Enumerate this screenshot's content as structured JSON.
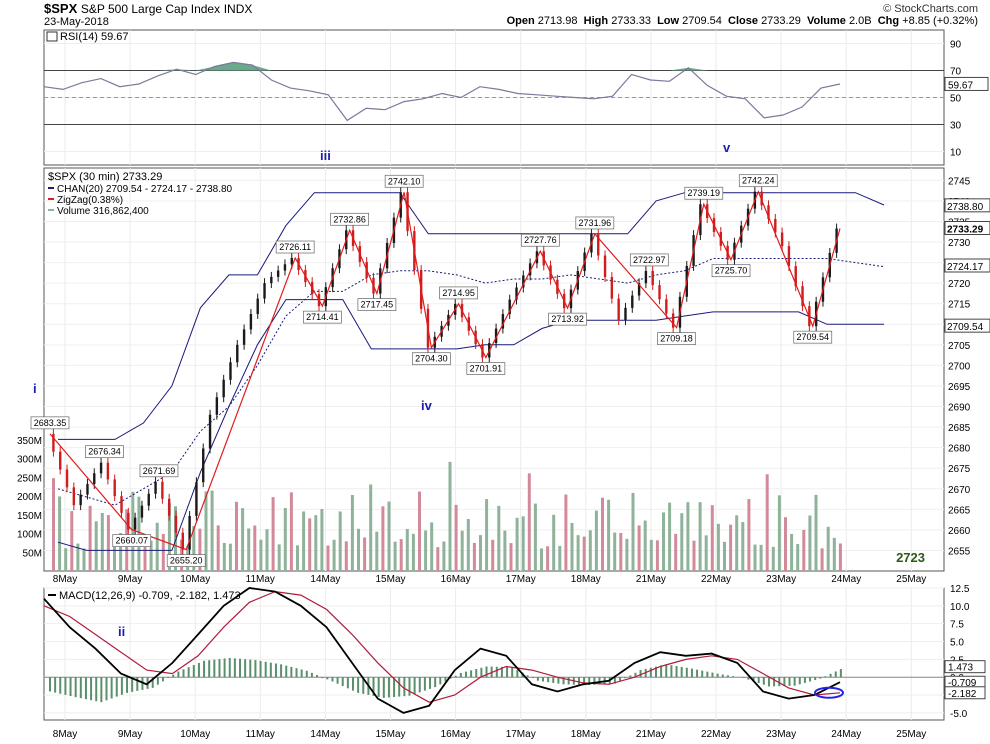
{
  "header": {
    "symbol": "$SPX",
    "name": "S&P 500 Large Cap Index",
    "exchange": "INDX",
    "date": "23-May-2018",
    "copyright": "© StockCharts.com",
    "open_label": "Open",
    "open": "2713.98",
    "high_label": "High",
    "high": "2733.33",
    "low_label": "Low",
    "low": "2709.54",
    "close_label": "Close",
    "close": "2733.29",
    "volume_label": "Volume",
    "volume": "2.0B",
    "chg_label": "Chg",
    "chg": "+8.85 (+0.32%)"
  },
  "colors": {
    "up": "#1a1a1a",
    "down": "#d01c1c",
    "zigzag": "#e21b1b",
    "channel": "#1a1a7a",
    "rsi_fill": "#6aa98a",
    "vol_up": "#8fb29a",
    "vol_down": "#d28a9a",
    "macd_hist": "#5a8f6c",
    "wave_label": "#1c1cb0",
    "ellipse": "#2222ee"
  },
  "chart_data": [
    {
      "type": "line",
      "title": "RSI(14) 59.67",
      "ylim": [
        0,
        100
      ],
      "y_ticks": [
        "90",
        "70",
        "50",
        "30",
        "10"
      ],
      "reference_lines": [
        70,
        50,
        30
      ],
      "right_labels": [
        "59.67"
      ],
      "series": [
        {
          "name": "RSI(14)",
          "values": [
            58,
            56,
            61,
            64,
            58,
            60,
            66,
            71,
            67,
            73,
            76,
            74,
            63,
            57,
            55,
            52,
            33,
            42,
            41,
            47,
            49,
            53,
            50,
            58,
            56,
            53,
            52,
            51,
            50,
            49,
            51,
            67,
            63,
            62,
            72,
            59,
            51,
            49,
            35,
            37,
            43,
            57,
            60
          ]
        }
      ]
    },
    {
      "type": "line",
      "title": "$SPX (30 min) 2733.29",
      "legend": [
        "CHAN(20) 2709.54 - 2724.17 - 2738.80",
        "ZigZag(0.38%)",
        "Volume 316,862,400"
      ],
      "x_labels": [
        "8May",
        "9May",
        "10May",
        "11May",
        "14May",
        "15May",
        "16May",
        "17May",
        "18May",
        "21May",
        "22May",
        "23May",
        "24May",
        "25May"
      ],
      "ylim": [
        2650,
        2748
      ],
      "y_ticks": [
        "2745",
        "2740",
        "2735",
        "2730",
        "2725",
        "2720",
        "2715",
        "2710",
        "2705",
        "2700",
        "2695",
        "2690",
        "2685",
        "2680",
        "2675",
        "2670",
        "2665",
        "2660",
        "2655"
      ],
      "right_labels": [
        "2738.80",
        "2733.29",
        "2724.17",
        "2709.54",
        "316862400"
      ],
      "volume_ticks": [
        "350M",
        "300M",
        "250M",
        "200M",
        "150M",
        "100M",
        "50M"
      ],
      "series": [
        {
          "name": "$SPX",
          "points": [
            [
              "8May",
              2683.35
            ],
            [
              "8May",
              2666.0
            ],
            [
              "8May",
              2676.34
            ],
            [
              "8May",
              2660.07
            ],
            [
              "8May",
              2671.69
            ],
            [
              "9May",
              2655.2
            ],
            [
              "9May",
              2688.0
            ],
            [
              "10May",
              2705.0
            ],
            [
              "10May",
              2720.0
            ],
            [
              "10May",
              2726.11
            ],
            [
              "10May",
              2714.41
            ],
            [
              "11May",
              2732.86
            ],
            [
              "11May",
              2717.45
            ],
            [
              "14May",
              2742.1
            ],
            [
              "15May",
              2704.3
            ],
            [
              "15May",
              2714.95
            ],
            [
              "16May",
              2701.91
            ],
            [
              "16May",
              2716.0
            ],
            [
              "17May",
              2727.76
            ],
            [
              "17May",
              2713.92
            ],
            [
              "17May",
              2731.96
            ],
            [
              "18May",
              2711.0
            ],
            [
              "18May",
              2722.97
            ],
            [
              "18May",
              2709.18
            ],
            [
              "21May",
              2739.19
            ],
            [
              "21May",
              2725.7
            ],
            [
              "22May",
              2742.24
            ],
            [
              "22May",
              2729.0
            ],
            [
              "23May",
              2709.54
            ],
            [
              "23May",
              2733.29
            ]
          ]
        },
        {
          "name": "ZigZag(0.38%)",
          "points": [
            [
              "8May",
              2683.35
            ],
            [
              "8May",
              2660.07
            ],
            [
              "9May",
              2655.2
            ],
            [
              "10May",
              2726.11
            ],
            [
              "10May",
              2714.41
            ],
            [
              "11May",
              2732.86
            ],
            [
              "11May",
              2717.45
            ],
            [
              "14May",
              2742.1
            ],
            [
              "15May",
              2704.3
            ],
            [
              "15May",
              2714.95
            ],
            [
              "16May",
              2701.91
            ],
            [
              "17May",
              2727.76
            ],
            [
              "17May",
              2713.92
            ],
            [
              "17May",
              2731.96
            ],
            [
              "18May",
              2709.18
            ],
            [
              "21May",
              2739.19
            ],
            [
              "21May",
              2725.7
            ],
            [
              "22May",
              2742.24
            ],
            [
              "23May",
              2709.54
            ],
            [
              "23May",
              2733.29
            ]
          ]
        }
      ],
      "annotations": [
        "2742.10",
        "2732.86",
        "2726.11",
        "2714.41",
        "2717.45",
        "2683.35",
        "2676.34",
        "2671.69",
        "2660.07",
        "2655.20",
        "2704.30",
        "2714.95",
        "2701.91",
        "2727.76",
        "2713.92",
        "2731.96",
        "2722.97",
        "2709.18",
        "2739.19",
        "2725.70",
        "2742.24",
        "2709.54"
      ],
      "wave_labels": [
        "i",
        "ii",
        "iii",
        "iv",
        "v"
      ],
      "corner_label": "2723"
    },
    {
      "type": "line",
      "title": "MACD(12,26,9) -0.709, -2.182, 1.473",
      "ylim": [
        -6,
        12.5
      ],
      "y_ticks": [
        "12.5",
        "10.0",
        "7.5",
        "5.0",
        "2.5",
        "0.0",
        "-2.5",
        "-5.0"
      ],
      "right_labels": [
        "1.473",
        "-0.709",
        "-2.182"
      ],
      "series": [
        {
          "name": "MACD",
          "values": [
            11,
            7,
            4,
            0.5,
            -1,
            2,
            6,
            10,
            12.5,
            12,
            10,
            7,
            2,
            -3,
            -5,
            -4,
            1,
            4,
            3,
            -1,
            -2,
            -1,
            -0.5,
            2,
            3.5,
            3,
            3.3,
            2,
            -2,
            -3,
            -2.5,
            -0.709
          ]
        },
        {
          "name": "Signal",
          "values": [
            10,
            8.5,
            6,
            3.5,
            1,
            0.5,
            3,
            7,
            10.5,
            12,
            11.5,
            9.5,
            6,
            2,
            -1.5,
            -3.5,
            -2.5,
            0,
            1.5,
            1,
            0,
            -0.8,
            -1,
            0,
            1.5,
            2.5,
            3,
            2.5,
            0.5,
            -1.5,
            -2.5,
            -2.182
          ]
        },
        {
          "name": "Histogram",
          "values": [
            -2,
            -2.8,
            -3.5,
            -2.2,
            -1.5,
            0.8,
            2.3,
            2.7,
            2.4,
            1.8,
            0.9,
            -0.6,
            -2.2,
            -2.9,
            -2.6,
            -1.4,
            0.6,
            1.5,
            1.4,
            -0.5,
            -1.0,
            -1.1,
            -0.9,
            1.0,
            1.8,
            1.2,
            0.5,
            -0.1,
            -1.3,
            -1.2,
            -0.2,
            1.473
          ]
        }
      ]
    }
  ]
}
